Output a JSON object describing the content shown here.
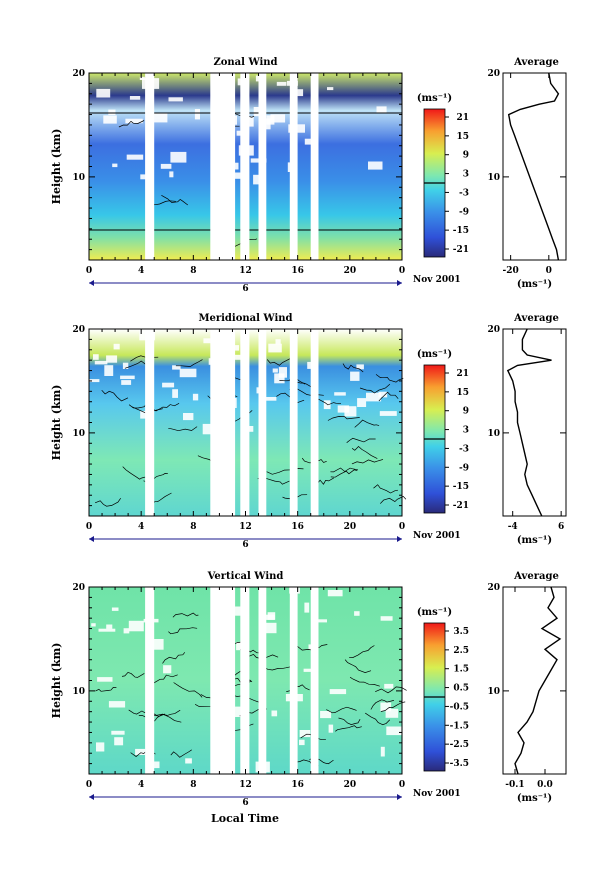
{
  "date_label": "Nov 2001",
  "date_tick": "6",
  "xlabel": "Local Time",
  "ylabel": "Height (km)",
  "unit_label": "(ms⁻¹)",
  "profile_title": "Average",
  "chart_data": [
    {
      "type": "heatmap",
      "title": "Zonal Wind",
      "x_ticks": [
        "0",
        "4",
        "8",
        "12",
        "16",
        "20",
        "0"
      ],
      "y_ticks": [
        "20",
        "10"
      ],
      "xlim": [
        0,
        24
      ],
      "ylim": [
        2,
        20
      ],
      "gaps_hours": [
        [
          4.3,
          5.0
        ],
        [
          9.3,
          11.2
        ],
        [
          11.6,
          12.3
        ],
        [
          13.0,
          13.6
        ],
        [
          15.4,
          16.0
        ],
        [
          17.0,
          17.6
        ]
      ],
      "colorbar": {
        "labels": [
          "21",
          "15",
          "9",
          "3",
          "-3",
          "-9",
          "-15",
          "-21"
        ],
        "zero_line": true
      },
      "profile": {
        "xlabel": "(ms⁻¹)",
        "x_ticks": [
          "-20",
          "0"
        ],
        "xlim": [
          -24,
          9
        ],
        "y_ticks": [
          "20",
          "10"
        ],
        "points": [
          [
            5,
            2
          ],
          [
            4,
            3
          ],
          [
            2,
            4
          ],
          [
            0,
            5
          ],
          [
            -2,
            6
          ],
          [
            -4,
            7
          ],
          [
            -6,
            8
          ],
          [
            -8,
            9
          ],
          [
            -10,
            10
          ],
          [
            -12,
            11
          ],
          [
            -14,
            12
          ],
          [
            -16,
            13
          ],
          [
            -18,
            14
          ],
          [
            -20,
            15
          ],
          [
            -21,
            16
          ],
          [
            -15,
            16.5
          ],
          [
            -5,
            17
          ],
          [
            3,
            17.3
          ],
          [
            5,
            18
          ],
          [
            1,
            19
          ],
          [
            0,
            20
          ]
        ]
      }
    },
    {
      "type": "heatmap",
      "title": "Meridional Wind",
      "x_ticks": [
        "0",
        "4",
        "8",
        "12",
        "16",
        "20",
        "0"
      ],
      "y_ticks": [
        "20",
        "10"
      ],
      "xlim": [
        0,
        24
      ],
      "ylim": [
        2,
        20
      ],
      "gaps_hours": [
        [
          4.3,
          5.0
        ],
        [
          9.3,
          11.2
        ],
        [
          11.6,
          12.3
        ],
        [
          13.0,
          13.6
        ],
        [
          15.4,
          16.0
        ],
        [
          17.0,
          17.6
        ]
      ],
      "colorbar": {
        "labels": [
          "21",
          "15",
          "9",
          "3",
          "-3",
          "-9",
          "-15",
          "-21"
        ],
        "zero_line": true
      },
      "profile": {
        "xlabel": "(ms⁻¹)",
        "x_ticks": [
          "-4",
          "6"
        ],
        "xlim": [
          -6,
          7
        ],
        "y_ticks": [
          "20",
          "10"
        ],
        "points": [
          [
            2,
            2
          ],
          [
            1,
            3
          ],
          [
            0,
            4
          ],
          [
            -1,
            5
          ],
          [
            -1.5,
            6
          ],
          [
            -1,
            7
          ],
          [
            -1.5,
            8
          ],
          [
            -2,
            9
          ],
          [
            -2.5,
            10
          ],
          [
            -3,
            11
          ],
          [
            -3,
            12
          ],
          [
            -3.5,
            13
          ],
          [
            -3.5,
            14
          ],
          [
            -4,
            15
          ],
          [
            -5,
            16
          ],
          [
            -3,
            16.5
          ],
          [
            4,
            17
          ],
          [
            -1,
            17.5
          ],
          [
            -2,
            18
          ],
          [
            -2,
            19
          ],
          [
            -1,
            20
          ]
        ]
      }
    },
    {
      "type": "heatmap",
      "title": "Vertical Wind",
      "x_ticks": [
        "0",
        "4",
        "8",
        "12",
        "16",
        "20",
        "0"
      ],
      "y_ticks": [
        "20",
        "10"
      ],
      "xlim": [
        0,
        24
      ],
      "ylim": [
        2,
        20
      ],
      "gaps_hours": [
        [
          4.3,
          5.0
        ],
        [
          9.3,
          11.2
        ],
        [
          11.6,
          12.3
        ],
        [
          13.0,
          13.6
        ],
        [
          15.4,
          16.0
        ],
        [
          17.0,
          17.6
        ]
      ],
      "colorbar": {
        "labels": [
          "3.5",
          "2.5",
          "1.5",
          "0.5",
          "-0.5",
          "-1.5",
          "-2.5",
          "-3.5"
        ],
        "zero_line": true
      },
      "profile": {
        "xlabel": "(ms⁻¹)",
        "x_ticks": [
          "-0.1",
          "0.0"
        ],
        "xlim": [
          -0.14,
          0.07
        ],
        "y_ticks": [
          "20",
          "10"
        ],
        "points": [
          [
            -0.09,
            2
          ],
          [
            -0.1,
            3
          ],
          [
            -0.08,
            4
          ],
          [
            -0.07,
            5
          ],
          [
            -0.09,
            6
          ],
          [
            -0.06,
            7
          ],
          [
            -0.04,
            8
          ],
          [
            -0.03,
            9
          ],
          [
            -0.02,
            10
          ],
          [
            0.0,
            11
          ],
          [
            0.02,
            12
          ],
          [
            0.04,
            13
          ],
          [
            0.0,
            14
          ],
          [
            0.05,
            15
          ],
          [
            -0.01,
            16
          ],
          [
            0.04,
            17
          ],
          [
            0.01,
            18
          ],
          [
            0.03,
            19
          ],
          [
            0.02,
            20
          ]
        ]
      }
    }
  ]
}
